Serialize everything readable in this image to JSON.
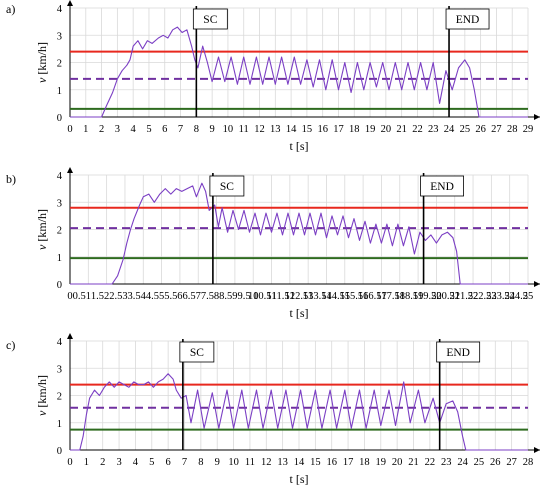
{
  "chart_data": [
    {
      "type": "line",
      "panel_label": "a)",
      "xlabel": "t [s]",
      "ylabel_var": "v",
      "ylabel_unit": " [km/h]",
      "xlim": [
        0,
        29
      ],
      "ylim": [
        0,
        4
      ],
      "xticks": [
        "0",
        "1",
        "2",
        "3",
        "4",
        "5",
        "6",
        "7",
        "8",
        "9",
        "10",
        "11",
        "12",
        "13",
        "14",
        "15",
        "16",
        "17",
        "18",
        "19",
        "20",
        "21",
        "22",
        "23",
        "24",
        "25",
        "26",
        "27",
        "28",
        "29"
      ],
      "yticks": [
        "0",
        "1",
        "2",
        "3",
        "4"
      ],
      "grid": true,
      "upper_threshold": 2.4,
      "mean_line": 1.4,
      "lower_threshold": 0.3,
      "markers": [
        {
          "label": "SC",
          "t": 8.0
        },
        {
          "label": "END",
          "t": 24.0
        }
      ],
      "series": [
        {
          "values": [
            [
              0,
              0
            ],
            [
              2.0,
              0
            ],
            [
              2.3,
              0.4
            ],
            [
              2.7,
              0.9
            ],
            [
              3.0,
              1.4
            ],
            [
              3.3,
              1.7
            ],
            [
              3.6,
              1.9
            ],
            [
              3.8,
              2.1
            ],
            [
              4.0,
              2.6
            ],
            [
              4.3,
              2.8
            ],
            [
              4.6,
              2.5
            ],
            [
              4.9,
              2.8
            ],
            [
              5.2,
              2.7
            ],
            [
              5.6,
              2.9
            ],
            [
              5.9,
              3.0
            ],
            [
              6.2,
              2.9
            ],
            [
              6.5,
              3.2
            ],
            [
              6.8,
              3.3
            ],
            [
              7.1,
              3.1
            ],
            [
              7.4,
              3.2
            ],
            [
              7.7,
              2.6
            ],
            [
              7.9,
              2.1
            ],
            [
              8.1,
              1.8
            ],
            [
              8.4,
              2.6
            ],
            [
              8.7,
              2.0
            ],
            [
              9.0,
              1.3
            ],
            [
              9.4,
              2.2
            ],
            [
              9.8,
              1.3
            ],
            [
              10.2,
              2.2
            ],
            [
              10.6,
              1.2
            ],
            [
              11.0,
              2.2
            ],
            [
              11.4,
              1.2
            ],
            [
              11.8,
              2.2
            ],
            [
              12.2,
              1.2
            ],
            [
              12.6,
              2.2
            ],
            [
              13.0,
              1.2
            ],
            [
              13.4,
              2.2
            ],
            [
              13.8,
              1.2
            ],
            [
              14.2,
              2.2
            ],
            [
              14.6,
              1.2
            ],
            [
              15.0,
              2.1
            ],
            [
              15.4,
              1.1
            ],
            [
              15.8,
              2.1
            ],
            [
              16.2,
              1.0
            ],
            [
              16.6,
              2.1
            ],
            [
              17.0,
              1.0
            ],
            [
              17.4,
              2.0
            ],
            [
              17.8,
              0.9
            ],
            [
              18.2,
              2.0
            ],
            [
              18.6,
              1.0
            ],
            [
              19.0,
              2.0
            ],
            [
              19.4,
              1.1
            ],
            [
              19.8,
              2.0
            ],
            [
              20.2,
              1.0
            ],
            [
              20.6,
              2.0
            ],
            [
              21.0,
              1.0
            ],
            [
              21.4,
              2.0
            ],
            [
              21.8,
              1.0
            ],
            [
              22.2,
              2.0
            ],
            [
              22.6,
              1.0
            ],
            [
              23.0,
              2.0
            ],
            [
              23.4,
              0.5
            ],
            [
              23.8,
              1.7
            ],
            [
              24.2,
              1.0
            ],
            [
              24.6,
              1.8
            ],
            [
              25.0,
              2.1
            ],
            [
              25.3,
              1.8
            ],
            [
              25.6,
              1.0
            ],
            [
              25.9,
              0
            ],
            [
              29,
              0
            ]
          ]
        }
      ]
    },
    {
      "type": "line",
      "panel_label": "b)",
      "xlabel": "t [s]",
      "ylabel_var": "v",
      "ylabel_unit": " [km/h]",
      "xlim": [
        0,
        25
      ],
      "ylim": [
        0,
        4
      ],
      "xticks": [
        "0",
        "0.5",
        "1",
        "1.5",
        "2",
        "2.5",
        "3",
        "3.5",
        "4",
        "4.5",
        "5",
        "5.5",
        "6",
        "6.5",
        "7",
        "7.5",
        "8",
        "8.5",
        "9",
        "9.5",
        "10",
        "10.5",
        "11",
        "11.5",
        "12",
        "12.5",
        "13",
        "13.5",
        "14",
        "14.5",
        "15",
        "15.5",
        "16",
        "16.5",
        "17",
        "17.5",
        "18",
        "18.5",
        "19",
        "19.5",
        "20",
        "20.5",
        "21",
        "21.5",
        "22",
        "22.5",
        "23",
        "23.5",
        "24",
        "24.5",
        "25"
      ],
      "yticks": [
        "0",
        "1",
        "2",
        "3",
        "4"
      ],
      "grid": true,
      "upper_threshold": 2.8,
      "mean_line": 2.05,
      "lower_threshold": 0.95,
      "markers": [
        {
          "label": "SC",
          "t": 7.8
        },
        {
          "label": "END",
          "t": 19.3
        }
      ],
      "series": [
        {
          "values": [
            [
              0,
              0
            ],
            [
              2.3,
              0
            ],
            [
              2.6,
              0.3
            ],
            [
              2.9,
              0.9
            ],
            [
              3.1,
              1.5
            ],
            [
              3.3,
              2.0
            ],
            [
              3.5,
              2.4
            ],
            [
              3.8,
              2.9
            ],
            [
              4.0,
              3.2
            ],
            [
              4.3,
              3.3
            ],
            [
              4.6,
              3.0
            ],
            [
              4.9,
              3.3
            ],
            [
              5.2,
              3.5
            ],
            [
              5.5,
              3.3
            ],
            [
              5.8,
              3.5
            ],
            [
              6.1,
              3.4
            ],
            [
              6.4,
              3.5
            ],
            [
              6.7,
              3.6
            ],
            [
              6.9,
              3.2
            ],
            [
              7.2,
              3.7
            ],
            [
              7.4,
              3.4
            ],
            [
              7.6,
              2.7
            ],
            [
              7.9,
              2.9
            ],
            [
              8.1,
              2.1
            ],
            [
              8.3,
              2.8
            ],
            [
              8.6,
              1.9
            ],
            [
              8.9,
              2.7
            ],
            [
              9.2,
              2.0
            ],
            [
              9.5,
              2.7
            ],
            [
              9.8,
              1.9
            ],
            [
              10.1,
              2.6
            ],
            [
              10.4,
              1.8
            ],
            [
              10.7,
              2.6
            ],
            [
              11.0,
              1.9
            ],
            [
              11.3,
              2.6
            ],
            [
              11.6,
              1.8
            ],
            [
              11.9,
              2.6
            ],
            [
              12.2,
              1.8
            ],
            [
              12.5,
              2.6
            ],
            [
              12.8,
              1.8
            ],
            [
              13.1,
              2.6
            ],
            [
              13.4,
              1.8
            ],
            [
              13.7,
              2.6
            ],
            [
              14.0,
              1.7
            ],
            [
              14.3,
              2.5
            ],
            [
              14.6,
              1.8
            ],
            [
              14.9,
              2.5
            ],
            [
              15.2,
              1.7
            ],
            [
              15.5,
              2.4
            ],
            [
              15.8,
              1.6
            ],
            [
              16.1,
              2.3
            ],
            [
              16.4,
              1.5
            ],
            [
              16.7,
              2.2
            ],
            [
              17.0,
              1.5
            ],
            [
              17.3,
              2.2
            ],
            [
              17.6,
              1.4
            ],
            [
              17.9,
              2.2
            ],
            [
              18.2,
              1.4
            ],
            [
              18.5,
              2.1
            ],
            [
              18.8,
              1.1
            ],
            [
              19.1,
              1.9
            ],
            [
              19.4,
              1.6
            ],
            [
              19.7,
              1.8
            ],
            [
              20.0,
              1.5
            ],
            [
              20.3,
              1.8
            ],
            [
              20.6,
              1.9
            ],
            [
              20.9,
              1.7
            ],
            [
              21.1,
              1.2
            ],
            [
              21.3,
              0
            ],
            [
              25,
              0
            ]
          ]
        }
      ]
    },
    {
      "type": "line",
      "panel_label": "c)",
      "xlabel": "t [s]",
      "ylabel_var": "v",
      "ylabel_unit": " [km/h]",
      "xlim": [
        0,
        28
      ],
      "ylim": [
        0,
        4
      ],
      "xticks": [
        "0",
        "1",
        "2",
        "3",
        "4",
        "5",
        "6",
        "7",
        "8",
        "9",
        "10",
        "11",
        "12",
        "13",
        "14",
        "15",
        "16",
        "17",
        "18",
        "19",
        "20",
        "21",
        "22",
        "23",
        "24",
        "25",
        "26",
        "27",
        "28"
      ],
      "yticks": [
        "0",
        "1",
        "2",
        "3",
        "4"
      ],
      "grid": true,
      "upper_threshold": 2.4,
      "mean_line": 1.55,
      "lower_threshold": 0.75,
      "markers": [
        {
          "label": "SC",
          "t": 6.9
        },
        {
          "label": "END",
          "t": 22.6
        }
      ],
      "series": [
        {
          "values": [
            [
              0,
              0
            ],
            [
              0.6,
              0
            ],
            [
              0.8,
              0.5
            ],
            [
              1.0,
              1.3
            ],
            [
              1.2,
              1.9
            ],
            [
              1.5,
              2.2
            ],
            [
              1.8,
              2.0
            ],
            [
              2.1,
              2.3
            ],
            [
              2.4,
              2.5
            ],
            [
              2.7,
              2.3
            ],
            [
              3.0,
              2.5
            ],
            [
              3.3,
              2.4
            ],
            [
              3.6,
              2.3
            ],
            [
              3.9,
              2.5
            ],
            [
              4.2,
              2.4
            ],
            [
              4.5,
              2.4
            ],
            [
              4.8,
              2.5
            ],
            [
              5.1,
              2.3
            ],
            [
              5.4,
              2.5
            ],
            [
              5.7,
              2.6
            ],
            [
              6.0,
              2.8
            ],
            [
              6.3,
              2.6
            ],
            [
              6.5,
              2.2
            ],
            [
              6.8,
              1.9
            ],
            [
              7.1,
              2.0
            ],
            [
              7.4,
              1.0
            ],
            [
              7.8,
              2.2
            ],
            [
              8.2,
              0.8
            ],
            [
              8.7,
              2.1
            ],
            [
              9.1,
              0.8
            ],
            [
              9.6,
              2.2
            ],
            [
              10.0,
              0.8
            ],
            [
              10.5,
              2.2
            ],
            [
              10.9,
              0.8
            ],
            [
              11.4,
              2.2
            ],
            [
              11.8,
              0.8
            ],
            [
              12.3,
              2.2
            ],
            [
              12.7,
              0.8
            ],
            [
              13.2,
              2.2
            ],
            [
              13.6,
              0.8
            ],
            [
              14.1,
              2.2
            ],
            [
              14.5,
              0.8
            ],
            [
              15.0,
              2.2
            ],
            [
              15.4,
              0.8
            ],
            [
              15.9,
              2.2
            ],
            [
              16.3,
              0.8
            ],
            [
              16.8,
              2.2
            ],
            [
              17.2,
              0.8
            ],
            [
              17.7,
              2.2
            ],
            [
              18.1,
              0.8
            ],
            [
              18.6,
              2.2
            ],
            [
              19.0,
              0.9
            ],
            [
              19.5,
              2.2
            ],
            [
              19.9,
              0.9
            ],
            [
              20.4,
              2.5
            ],
            [
              20.8,
              1.0
            ],
            [
              21.3,
              2.2
            ],
            [
              21.7,
              1.0
            ],
            [
              22.2,
              1.9
            ],
            [
              22.6,
              1.0
            ],
            [
              23.0,
              1.7
            ],
            [
              23.4,
              1.8
            ],
            [
              23.7,
              1.4
            ],
            [
              24.0,
              0.5
            ],
            [
              24.2,
              0
            ],
            [
              28,
              0
            ]
          ]
        }
      ]
    }
  ]
}
